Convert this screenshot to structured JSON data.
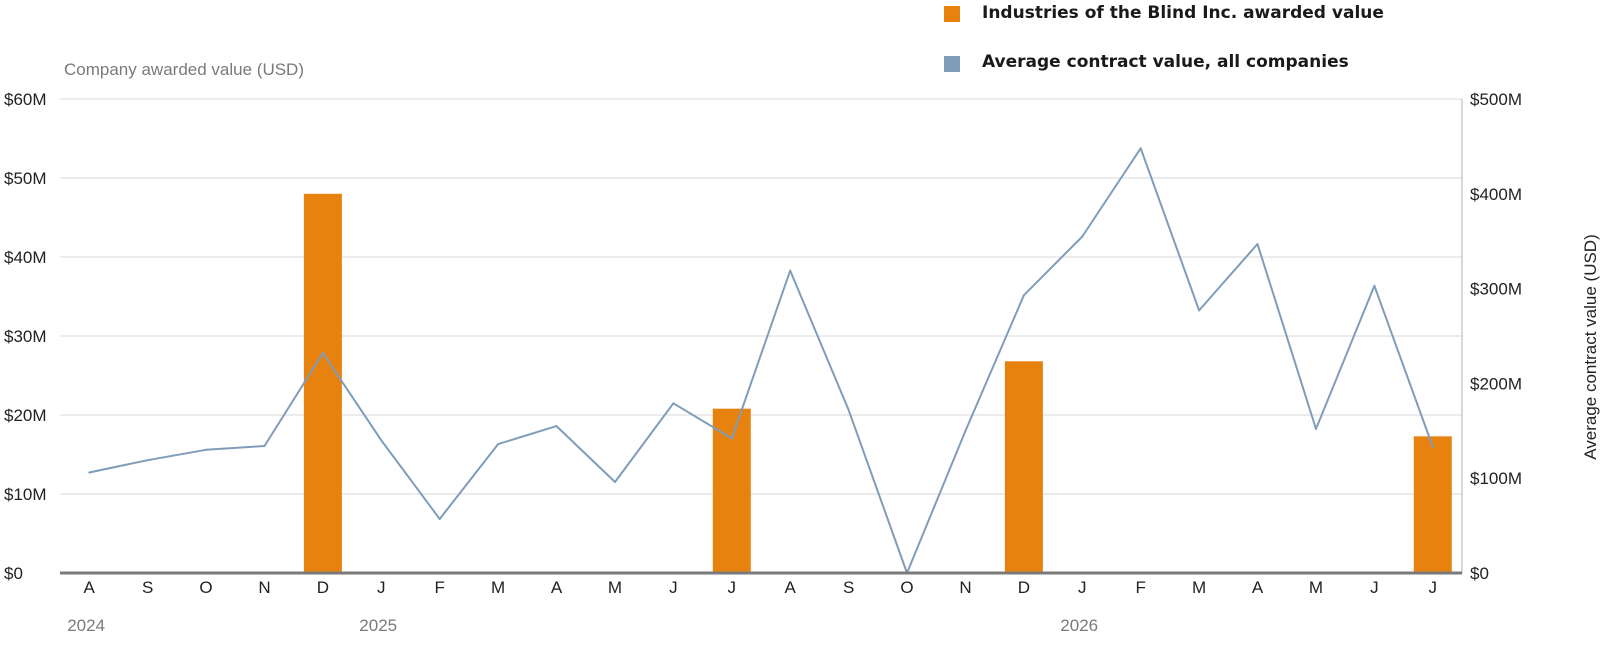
{
  "chart_data": {
    "type": "bar",
    "legend": [
      {
        "label": "Industries of the Blind Inc. awarded value",
        "color": "#E8820F"
      },
      {
        "label": "Average contract value, all companies",
        "color": "#7F9DBA"
      }
    ],
    "y_left": {
      "title": "Company awarded value (USD)",
      "ylim": [
        0,
        60
      ],
      "ticks": [
        0,
        10,
        20,
        30,
        40,
        50,
        60
      ],
      "tick_labels": [
        "$0",
        "$10M",
        "$20M",
        "$30M",
        "$40M",
        "$50M",
        "$60M"
      ]
    },
    "y_right": {
      "title": "Average contract value (USD)",
      "ylim": [
        0,
        500
      ],
      "ticks": [
        0,
        100,
        200,
        300,
        400,
        500
      ],
      "tick_labels": [
        "$0",
        "$100M",
        "$200M",
        "$300M",
        "$400M",
        "$500M"
      ]
    },
    "categories": [
      "2024-08",
      "2024-09",
      "2024-10",
      "2024-11",
      "2024-12",
      "2025-01",
      "2025-02",
      "2025-03",
      "2025-04",
      "2025-05",
      "2025-06",
      "2025-07",
      "2025-08",
      "2025-09",
      "2025-10",
      "2025-11",
      "2025-12",
      "2026-01",
      "2026-02",
      "2026-03",
      "2026-04",
      "2026-05",
      "2026-06",
      "2026-07"
    ],
    "month_labels": [
      "A",
      "S",
      "O",
      "N",
      "D",
      "J",
      "F",
      "M",
      "A",
      "M",
      "J",
      "J",
      "A",
      "S",
      "O",
      "N",
      "D",
      "J",
      "F",
      "M",
      "A",
      "M",
      "J",
      "J"
    ],
    "year_labels": [
      {
        "label": "2024",
        "index": 0
      },
      {
        "label": "2025",
        "index": 5
      },
      {
        "label": "2026",
        "index": 17
      }
    ],
    "series": [
      {
        "name": "Industries of the Blind Inc. awarded value",
        "type": "bar",
        "axis": "left",
        "color": "#E8820F",
        "values": [
          0,
          0,
          0,
          0,
          48,
          0,
          0,
          0,
          0,
          0,
          0,
          20.8,
          0,
          0,
          0,
          0,
          26.8,
          0,
          0,
          0,
          0,
          0,
          0,
          17.3
        ]
      },
      {
        "name": "Average contract value, all companies",
        "type": "line",
        "axis": "right",
        "color": "#7F9DBA",
        "values": [
          106,
          119,
          130,
          134,
          232,
          140,
          57,
          136,
          155,
          96,
          179,
          142,
          319,
          172,
          0,
          150,
          293,
          355,
          448,
          277,
          347,
          152,
          303,
          133
        ]
      }
    ],
    "grid": true
  }
}
